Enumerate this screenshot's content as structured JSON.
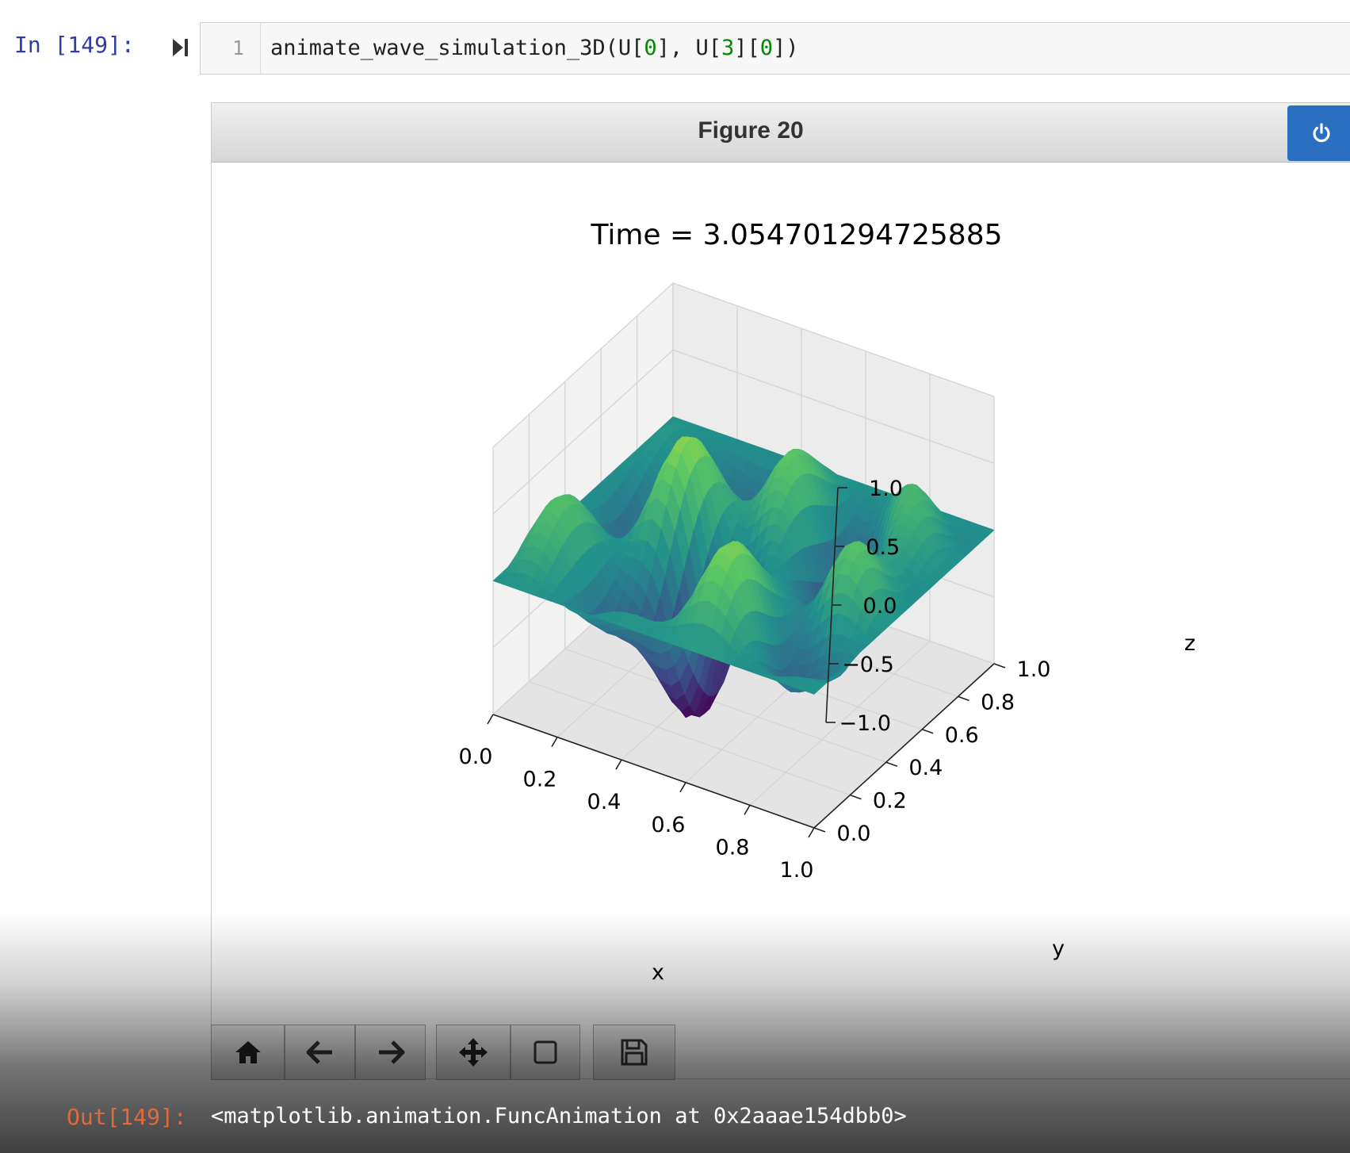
{
  "cell": {
    "in_prompt": "In [149]:",
    "line_number": "1",
    "code_parts": [
      "animate_wave_simulation_3D(U[",
      "0",
      "], U[",
      "3",
      "][",
      "0",
      "])"
    ]
  },
  "figure": {
    "title": "Figure 20",
    "close_icon": "power-icon"
  },
  "chart_data": {
    "type": "surface",
    "title": "Time = 3.054701294725885",
    "xlabel": "x",
    "ylabel": "y",
    "zlabel": "z",
    "x_ticks": [
      "0.0",
      "0.2",
      "0.4",
      "0.6",
      "0.8",
      "1.0"
    ],
    "y_ticks": [
      "0.0",
      "0.2",
      "0.4",
      "0.6",
      "0.8",
      "1.0"
    ],
    "z_ticks": [
      "−1.0",
      "−0.5",
      "0.0",
      "0.5",
      "1.0"
    ],
    "xlim": [
      0,
      1
    ],
    "ylim": [
      0,
      1
    ],
    "zlim": [
      -1,
      1
    ],
    "colormap": "viridis",
    "grid": true
  },
  "toolbar": {
    "buttons": [
      "home-icon",
      "back-arrow-icon",
      "forward-arrow-icon",
      "pan-icon",
      "zoom-rect-icon",
      "save-icon"
    ]
  },
  "output": {
    "out_prompt": "Out[149]:",
    "text": "<matplotlib.animation.FuncAnimation at 0x2aaae154dbb0>"
  }
}
